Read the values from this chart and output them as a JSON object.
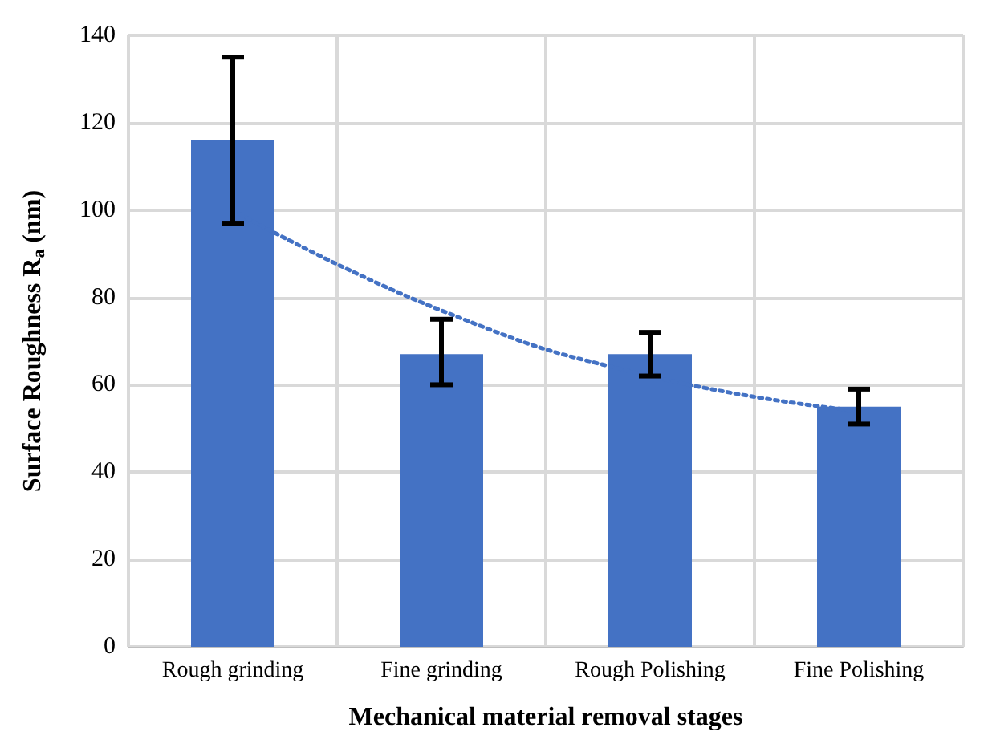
{
  "chart_data": {
    "type": "bar",
    "xlabel": "Mechanical material removal stages",
    "ylabel": "Surface Roughness R$_{a}$ (nm)",
    "categories": [
      "Rough grinding",
      "Fine grinding",
      "Rough Polishing",
      "Fine Polishing"
    ],
    "series": [
      {
        "color": "#4472c4",
        "values": [
          116,
          67,
          67,
          55
        ],
        "errors": [
          [
            97,
            135
          ],
          [
            60,
            75
          ],
          [
            62,
            72
          ],
          [
            51,
            59
          ]
        ]
      },
      {
        "type": "line",
        "color": "#4472c4",
        "x": [
          "Rough grinding",
          "Fine grinding",
          "Rough Polishing",
          "Fine Polishing"
        ],
        "values": [
          100,
          77,
          62,
          54
        ],
        "line_style": "dotted",
        "marker": "none"
      }
    ],
    "ylim": [
      0,
      140
    ],
    "yticks": [
      0,
      20,
      40,
      60,
      80,
      100,
      120,
      140
    ],
    "grid": true
  }
}
